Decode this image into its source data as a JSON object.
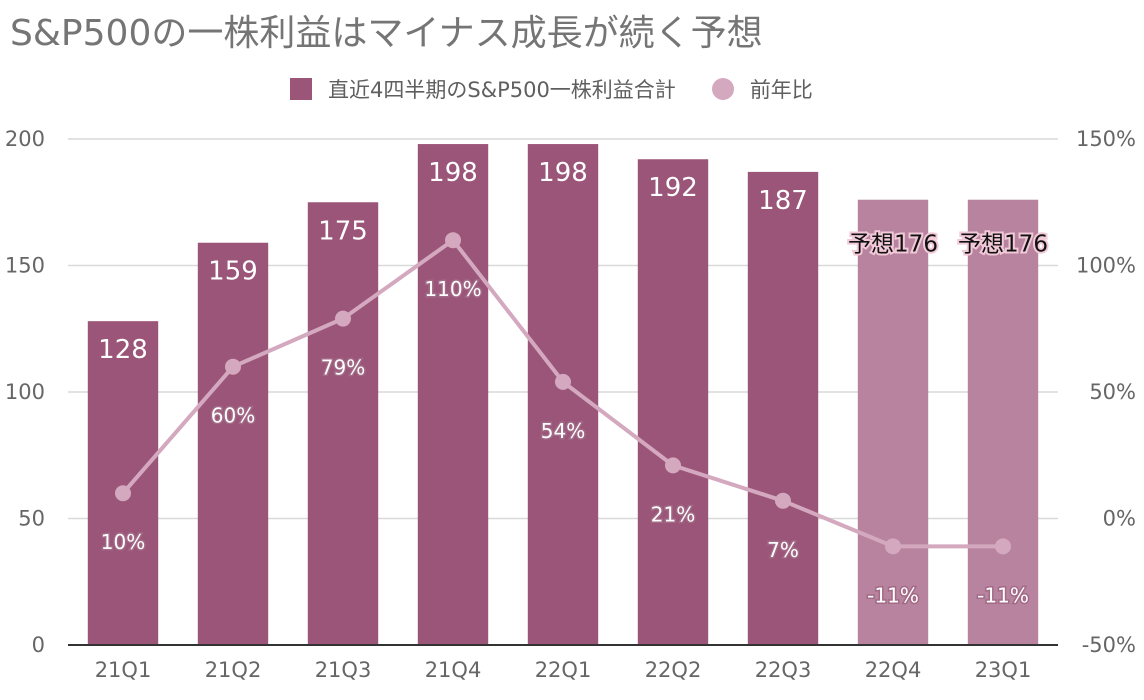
{
  "colors": {
    "bar": "#9a5579",
    "bar_forecast": "#b7839f",
    "line": "#d4a8be",
    "gridline": "#d9d9d9",
    "axis": "#333333"
  },
  "chart_data": {
    "type": "bar",
    "title": "S&P500の一株利益はマイナス成長が続く予想",
    "categories": [
      "21Q1",
      "21Q2",
      "21Q3",
      "21Q4",
      "22Q1",
      "22Q2",
      "22Q3",
      "22Q4",
      "23Q1"
    ],
    "legend_position": "top",
    "grid": true,
    "series": [
      {
        "name": "直近4四半期のS&P500一株利益合計",
        "type": "bar",
        "axis": "left",
        "values": [
          128,
          159,
          175,
          198,
          198,
          192,
          187,
          176,
          176
        ],
        "labels": [
          "128",
          "159",
          "175",
          "198",
          "198",
          "192",
          "187",
          "予想176",
          "予想176"
        ],
        "forecast": [
          false,
          false,
          false,
          false,
          false,
          false,
          false,
          true,
          true
        ]
      },
      {
        "name": "前年比",
        "type": "line",
        "axis": "right",
        "values": [
          10,
          60,
          79,
          110,
          54,
          21,
          7,
          -11,
          -11
        ],
        "labels": [
          "10%",
          "60%",
          "79%",
          "110%",
          "54%",
          "21%",
          "7%",
          "-11%",
          "-11%"
        ]
      }
    ],
    "y_left": {
      "ylim": [
        0,
        200
      ],
      "ticks": [
        0,
        50,
        100,
        150,
        200
      ],
      "tick_labels": [
        "0",
        "50",
        "100",
        "150",
        "200"
      ]
    },
    "y_right": {
      "ylim": [
        -50,
        150
      ],
      "ticks": [
        -50,
        0,
        50,
        100,
        150
      ],
      "tick_labels": [
        "-50%",
        "0%",
        "50%",
        "100%",
        "150%"
      ]
    }
  }
}
